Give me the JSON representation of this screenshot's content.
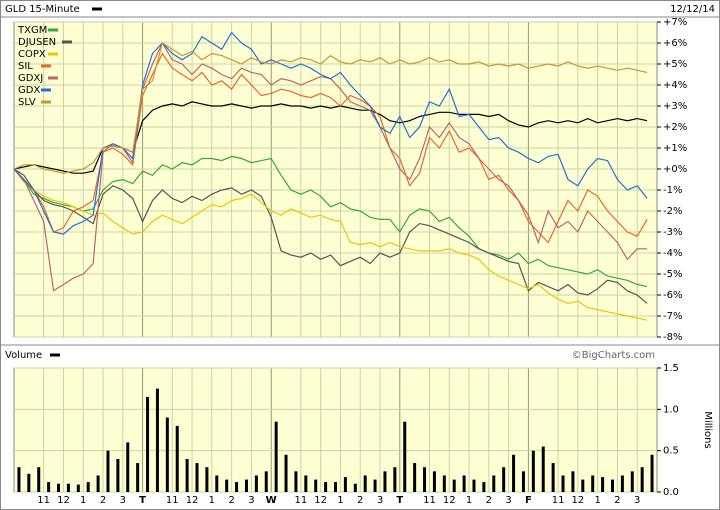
{
  "chart_data": [
    {
      "type": "line",
      "title": "GLD 15-Minute",
      "date": "12/12/14",
      "xlim": [
        0,
        65
      ],
      "ylim": [
        -8,
        7
      ],
      "yticks": [
        {
          "value": 7,
          "label": "+7%"
        },
        {
          "value": 6,
          "label": "+6%"
        },
        {
          "value": 5,
          "label": "+5%"
        },
        {
          "value": 4,
          "label": "+4%"
        },
        {
          "value": 3,
          "label": "+3%"
        },
        {
          "value": 2,
          "label": "+2%"
        },
        {
          "value": 1,
          "label": "+1%"
        },
        {
          "value": 0,
          "label": "+0%"
        },
        {
          "value": -1,
          "label": "-1%"
        },
        {
          "value": -2,
          "label": "-2%"
        },
        {
          "value": -3,
          "label": "-3%"
        },
        {
          "value": -4,
          "label": "-4%"
        },
        {
          "value": -5,
          "label": "-5%"
        },
        {
          "value": -6,
          "label": "-6%"
        },
        {
          "value": -7,
          "label": "-7%"
        },
        {
          "value": -8,
          "label": "-8%"
        }
      ],
      "grid": true,
      "series": [
        {
          "name": "GLD 15-Minute",
          "color": "#000000",
          "values": [
            0,
            0.1,
            0.2,
            0.1,
            0,
            -0.1,
            -0.2,
            -0.2,
            -0.1,
            1,
            1.1,
            1,
            0.8,
            2.3,
            2.8,
            3,
            3.1,
            3,
            3.2,
            3.1,
            3,
            3,
            3.1,
            3,
            2.9,
            3,
            3,
            3.1,
            3,
            3,
            2.9,
            3,
            2.9,
            3,
            2.9,
            2.8,
            2.8,
            2.6,
            2.3,
            2.2,
            2.3,
            2.5,
            2.6,
            2.7,
            2.7,
            2.6,
            2.6,
            2.6,
            2.5,
            2.6,
            2.3,
            2.1,
            2,
            2.2,
            2.3,
            2.2,
            2.3,
            2.2,
            2.4,
            2.2,
            2.3,
            2.4,
            2.3,
            2.4,
            2.3
          ]
        },
        {
          "name": "TXGM",
          "color": "#33aa33",
          "values": [
            0,
            -0.5,
            -1.2,
            -1.4,
            -1.6,
            -1.7,
            -1.8,
            -2,
            -1.9,
            -1,
            -0.6,
            -0.5,
            -0.7,
            -0.1,
            -0.3,
            0.2,
            0,
            0.3,
            0.2,
            0.5,
            0.5,
            0.4,
            0.6,
            0.5,
            0.3,
            0.4,
            0.5,
            -0.3,
            -1,
            -1.2,
            -1,
            -1.3,
            -1.8,
            -1.6,
            -1.9,
            -2,
            -2.3,
            -2.4,
            -2.4,
            -3,
            -2.2,
            -1.9,
            -2,
            -2.5,
            -2.3,
            -2.8,
            -3.2,
            -3.8,
            -4,
            -4.1,
            -4.3,
            -4,
            -4.5,
            -4.3,
            -4.6,
            -4.7,
            -4.8,
            -4.9,
            -5,
            -4.8,
            -5.1,
            -5.2,
            -5.3,
            -5.5,
            -5.6
          ]
        },
        {
          "name": "DJUSEN",
          "color": "#555555",
          "values": [
            0,
            -0.3,
            -1,
            -1.5,
            -1.7,
            -1.8,
            -2,
            -2.3,
            -2.6,
            -1.2,
            -0.8,
            -1,
            -1.4,
            -2.5,
            -1.5,
            -1,
            -1.4,
            -1.6,
            -1.3,
            -1.5,
            -1.2,
            -1,
            -0.9,
            -1.2,
            -1,
            -1.3,
            -2.3,
            -3.9,
            -4.1,
            -4.2,
            -4,
            -4.3,
            -4.1,
            -4.6,
            -4.4,
            -4.2,
            -4.5,
            -4,
            -4.2,
            -4,
            -3,
            -2.6,
            -2.7,
            -2.9,
            -3.1,
            -3.3,
            -3.5,
            -3.8,
            -4,
            -4.2,
            -4.4,
            -4.5,
            -5.8,
            -5.4,
            -5.6,
            -5.8,
            -5.5,
            -5.9,
            -6,
            -5.7,
            -5.3,
            -5.4,
            -5.8,
            -6,
            -6.4
          ]
        },
        {
          "name": "COPX",
          "color": "#f0c400",
          "values": [
            0,
            -0.5,
            -1,
            -1.3,
            -1.5,
            -1.6,
            -1.8,
            -2,
            -2.2,
            -2.1,
            -2.5,
            -2.8,
            -3.1,
            -3,
            -2.5,
            -2.2,
            -2.4,
            -2.6,
            -2.3,
            -2,
            -1.7,
            -1.8,
            -1.5,
            -1.4,
            -1.2,
            -1.6,
            -2,
            -2.2,
            -1.9,
            -2.1,
            -2.3,
            -2.2,
            -2.4,
            -2.5,
            -3.5,
            -3.6,
            -3.5,
            -3.7,
            -3.5,
            -3.7,
            -3.8,
            -3.9,
            -3.9,
            -3.9,
            -3.8,
            -4,
            -4.1,
            -4.3,
            -4.8,
            -5.1,
            -5.3,
            -5.5,
            -5.7,
            -5.5,
            -5.9,
            -6.2,
            -6.4,
            -6.3,
            -6.6,
            -6.7,
            -6.8,
            -6.9,
            -7,
            -7.1,
            -7.2
          ]
        },
        {
          "name": "SIL",
          "color": "#ee6622",
          "values": [
            0,
            -0.6,
            -1,
            -1.8,
            -3,
            -2.8,
            -2,
            -1.8,
            -1.5,
            0.8,
            1,
            0.7,
            0.2,
            3.5,
            4.5,
            5.5,
            4.8,
            4.5,
            4.2,
            4.6,
            4,
            4.2,
            3.8,
            4.5,
            4,
            3.5,
            3.6,
            3.8,
            3.7,
            3.5,
            3.4,
            3.6,
            3.4,
            3,
            3.5,
            3.3,
            3,
            2.5,
            1,
            0.5,
            -0.8,
            -0.2,
            1.5,
            1,
            1.8,
            0.8,
            1,
            0.5,
            -0.5,
            -0.3,
            -1,
            -1.5,
            -2.5,
            -3,
            -3.5,
            -2.5,
            -1.5,
            -2,
            -1,
            -1.3,
            -2,
            -2.5,
            -3,
            -3.2,
            -2.4
          ]
        },
        {
          "name": "GDXJ",
          "color": "#bb6666",
          "values": [
            0,
            -0.5,
            -1.5,
            -2.5,
            -5.8,
            -5.5,
            -5.2,
            -5,
            -4.5,
            0.8,
            1.2,
            1,
            0.3,
            3.8,
            5,
            6,
            5.2,
            5,
            4.5,
            5,
            4.8,
            4.5,
            4.3,
            4.8,
            4.6,
            4.5,
            4,
            4.3,
            4.2,
            4,
            4.2,
            4.4,
            4.3,
            3.8,
            3.2,
            3,
            2.8,
            2,
            1,
            0,
            -0.5,
            0.5,
            2,
            1.5,
            2.2,
            1.5,
            1.2,
            0.5,
            0,
            -0.5,
            -0.8,
            -1.5,
            -2.2,
            -3.5,
            -2,
            -2.8,
            -2.5,
            -3,
            -2,
            -2.5,
            -3,
            -3.5,
            -4.3,
            -3.8,
            -3.8
          ]
        },
        {
          "name": "GDX",
          "color": "#1f6fe0",
          "values": [
            0,
            -0.5,
            -1,
            -2,
            -3,
            -3.1,
            -2.7,
            -2.5,
            -2.2,
            1,
            1.2,
            1,
            0.5,
            4,
            5.5,
            6,
            5.5,
            5.2,
            5.5,
            6.3,
            6,
            5.7,
            6.5,
            6,
            5.7,
            5,
            5.2,
            5,
            4.8,
            5,
            4.8,
            4.5,
            4.3,
            4.6,
            4,
            3.5,
            3,
            2,
            1.7,
            2.5,
            1.5,
            2,
            3.2,
            3,
            3.8,
            2.5,
            2.6,
            2,
            1.4,
            1.5,
            1,
            0.8,
            0.5,
            0.3,
            0.6,
            0.7,
            -0.5,
            -0.8,
            0,
            0.5,
            0.4,
            -0.5,
            -1,
            -0.8,
            -1.4
          ]
        },
        {
          "name": "SLV",
          "color": "#c89632",
          "values": [
            0,
            0.2,
            0.2,
            0,
            -0.1,
            -0.2,
            -0.1,
            0,
            0.3,
            1,
            1.1,
            1,
            0.8,
            3.8,
            4.2,
            6,
            5.7,
            5.4,
            5.6,
            5.2,
            5.5,
            5.4,
            5.2,
            5,
            5.3,
            5.1,
            5,
            5.2,
            5.1,
            5.3,
            5.2,
            5,
            5.4,
            5.1,
            5,
            5.2,
            5.1,
            5.3,
            5,
            5.2,
            5,
            5.1,
            5.3,
            5.1,
            5.2,
            5,
            5,
            5.1,
            4.9,
            5,
            4.9,
            5,
            4.8,
            4.9,
            5,
            4.9,
            5.1,
            4.9,
            4.8,
            4.9,
            4.8,
            4.7,
            4.8,
            4.7,
            4.6
          ]
        }
      ]
    },
    {
      "type": "bar",
      "title": "Volume",
      "source": "©BigCharts.com",
      "y_label": "Millions",
      "color": "#000000",
      "xlim": [
        0,
        65
      ],
      "ylim": [
        0,
        1.5
      ],
      "yticks": [
        1.5,
        {
          "value": 1,
          "label": "1.0"
        },
        0.5,
        {
          "value": 0,
          "label": "0.0"
        }
      ],
      "xticks": [
        {
          "value": 3,
          "label": "11"
        },
        {
          "value": 5,
          "label": "12"
        },
        {
          "value": 7,
          "label": "1"
        },
        {
          "value": 9,
          "label": "2"
        },
        {
          "value": 11,
          "label": "3"
        },
        {
          "value": 13,
          "label": "T"
        },
        {
          "value": 16,
          "label": "11"
        },
        {
          "value": 18,
          "label": "12"
        },
        {
          "value": 20,
          "label": "1"
        },
        {
          "value": 22,
          "label": "2"
        },
        {
          "value": 24,
          "label": "3"
        },
        {
          "value": 26,
          "label": "W"
        },
        {
          "value": 29,
          "label": "11"
        },
        {
          "value": 31,
          "label": "12"
        },
        {
          "value": 33,
          "label": "1"
        },
        {
          "value": 35,
          "label": "2"
        },
        {
          "value": 37,
          "label": "3"
        },
        {
          "value": 39,
          "label": "T"
        },
        {
          "value": 42,
          "label": "11"
        },
        {
          "value": 44,
          "label": "12"
        },
        {
          "value": 46,
          "label": "1"
        },
        {
          "value": 48,
          "label": "2"
        },
        {
          "value": 50,
          "label": "3"
        },
        {
          "value": 52,
          "label": "F"
        },
        {
          "value": 55,
          "label": "11"
        },
        {
          "value": 57,
          "label": "12"
        },
        {
          "value": 59,
          "label": "1"
        },
        {
          "value": 61,
          "label": "2"
        },
        {
          "value": 63,
          "label": "3"
        }
      ],
      "values": [
        0.3,
        0.22,
        0.3,
        0.12,
        0.1,
        0.1,
        0.09,
        0.12,
        0.2,
        0.5,
        0.4,
        0.6,
        0.35,
        1.15,
        1.25,
        0.9,
        0.8,
        0.4,
        0.35,
        0.3,
        0.2,
        0.15,
        0.12,
        0.15,
        0.2,
        0.25,
        0.85,
        0.45,
        0.25,
        0.2,
        0.15,
        0.12,
        0.12,
        0.18,
        0.1,
        0.2,
        0.15,
        0.25,
        0.3,
        0.85,
        0.35,
        0.3,
        0.25,
        0.2,
        0.15,
        0.2,
        0.15,
        0.12,
        0.2,
        0.3,
        0.45,
        0.25,
        0.5,
        0.55,
        0.35,
        0.2,
        0.25,
        0.15,
        0.2,
        0.18,
        0.15,
        0.2,
        0.25,
        0.3,
        0.45
      ]
    }
  ]
}
